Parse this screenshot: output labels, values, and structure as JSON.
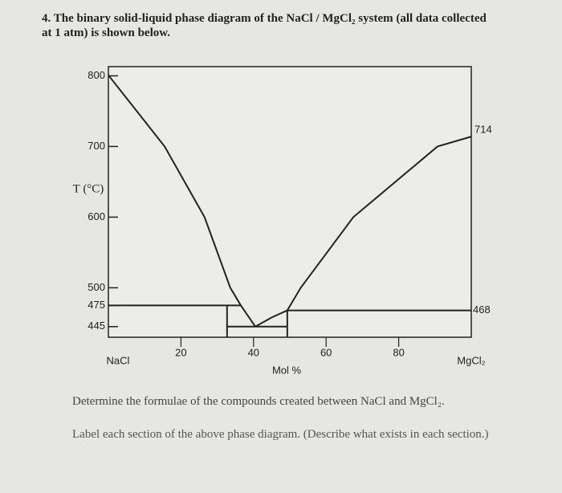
{
  "question": {
    "title": "4. The binary solid-liquid phase diagram of the NaCl / MgCl₂ system (all data collected at 1 atm) is shown below.",
    "parts": [
      "Determine the formulae of the compounds created between NaCl and MgCl₂.",
      "Label each section of the above phase diagram. (Describe what exists in each section.)"
    ]
  },
  "chart_data": {
    "type": "line",
    "xlabel": "Mol %",
    "ylabel": "T (°C)",
    "xlim": [
      0,
      100
    ],
    "ylim": [
      430,
      813
    ],
    "xticks": [
      {
        "value": 0,
        "label": "NaCl"
      },
      20,
      40,
      60,
      80,
      {
        "value": 100,
        "label": "MgCl₂"
      }
    ],
    "yticks": [
      800,
      700,
      600,
      500,
      475,
      445
    ],
    "annotations": [
      "714",
      "468"
    ],
    "series": [
      {
        "color": "#222222",
        "x": [
          0,
          15.5,
          26.5,
          33.6,
          36.5,
          40.5
        ],
        "values": [
          801,
          700,
          600,
          500,
          475,
          445
        ]
      },
      {
        "color": "#222222",
        "x": [
          40.5,
          45,
          49.3,
          53,
          67.5,
          90.7,
          100
        ],
        "values": [
          445,
          458,
          468,
          500,
          600,
          700,
          714
        ]
      },
      {
        "color": "#222222",
        "x": [
          0,
          36.5
        ],
        "values": [
          475,
          475
        ]
      },
      {
        "color": "#222222",
        "x": [
          32.7,
          49.3
        ],
        "values": [
          445,
          445
        ]
      },
      {
        "color": "#222222",
        "x": [
          32.7,
          32.7
        ],
        "values": [
          475,
          430
        ]
      },
      {
        "color": "#222222",
        "x": [
          49.3,
          49.3
        ],
        "values": [
          468,
          430
        ]
      },
      {
        "color": "#222222",
        "x": [
          49.3,
          100
        ],
        "values": [
          468,
          468
        ]
      }
    ]
  }
}
